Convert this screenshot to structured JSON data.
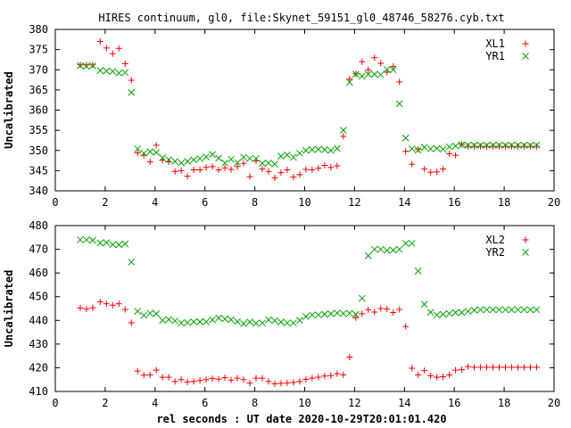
{
  "title": "HIRES continuum, gl0, file:Skynet_59151_gl0_48746_58276.cyb.txt",
  "xlabel": "rel seconds : UT date 2020-10-29T20:01:01.420",
  "colors": {
    "series1": "#ff0000",
    "series2": "#00a000",
    "axis": "#000000",
    "background": "#ffffff"
  },
  "chart_data": [
    {
      "type": "scatter",
      "ylabel": "Uncalibrated",
      "xlim": [
        0,
        20
      ],
      "ylim": [
        340,
        380
      ],
      "x_ticks": [
        "0",
        "2",
        "4",
        "6",
        "8",
        "10",
        "12",
        "14",
        "16",
        "18",
        "20"
      ],
      "y_ticks": [
        "340",
        "345",
        "350",
        "355",
        "360",
        "365",
        "370",
        "375",
        "380"
      ],
      "legend_position": "top-right",
      "series": [
        {
          "name": "XL1",
          "marker": "+",
          "x": [
            1.0,
            1.25,
            1.5,
            1.8,
            2.05,
            2.3,
            2.55,
            2.8,
            3.05,
            3.3,
            3.55,
            3.8,
            4.05,
            4.3,
            4.55,
            4.8,
            5.05,
            5.3,
            5.55,
            5.8,
            6.05,
            6.3,
            6.55,
            6.8,
            7.05,
            7.3,
            7.55,
            7.8,
            8.05,
            8.3,
            8.55,
            8.8,
            9.05,
            9.3,
            9.55,
            9.8,
            10.05,
            10.3,
            10.55,
            10.8,
            11.05,
            11.3,
            11.55,
            11.8,
            12.05,
            12.3,
            12.55,
            12.8,
            13.05,
            13.3,
            13.55,
            13.8,
            14.05,
            14.3,
            14.55,
            14.8,
            15.05,
            15.3,
            15.55,
            15.8,
            16.05,
            16.3,
            16.55,
            16.8,
            17.05,
            17.3,
            17.55,
            17.8,
            18.05,
            18.3,
            18.55,
            18.8,
            19.05,
            19.3
          ],
          "y": [
            371.2,
            371.2,
            371.2,
            377.0,
            375.4,
            374.0,
            375.3,
            371.5,
            367.4,
            349.4,
            348.8,
            347.2,
            351.3,
            347.6,
            347.2,
            344.8,
            345.0,
            343.6,
            345.2,
            345.2,
            345.8,
            346.0,
            345.2,
            345.7,
            345.3,
            346.0,
            346.8,
            343.5,
            347.4,
            345.4,
            344.8,
            343.2,
            344.5,
            345.2,
            343.4,
            344.0,
            345.3,
            345.2,
            345.6,
            346.3,
            345.8,
            346.2,
            353.5,
            367.7,
            369.0,
            372.0,
            370.0,
            373.0,
            371.6,
            369.4,
            370.8,
            367.0,
            349.8,
            346.6,
            350.3,
            345.4,
            344.6,
            344.7,
            345.4,
            349.2,
            348.8,
            351.5,
            351.0,
            351.0,
            351.0,
            351.0,
            351.0,
            351.0,
            351.0,
            351.0,
            351.0,
            351.0,
            351.0,
            351.0
          ]
        },
        {
          "name": "YR1",
          "marker": "x",
          "x": [
            1.0,
            1.25,
            1.5,
            1.8,
            2.05,
            2.3,
            2.55,
            2.8,
            3.05,
            3.3,
            3.55,
            3.8,
            4.05,
            4.3,
            4.55,
            4.8,
            5.05,
            5.3,
            5.55,
            5.8,
            6.05,
            6.3,
            6.55,
            6.8,
            7.05,
            7.3,
            7.55,
            7.8,
            8.05,
            8.3,
            8.55,
            8.8,
            9.05,
            9.3,
            9.55,
            9.8,
            10.05,
            10.3,
            10.55,
            10.8,
            11.05,
            11.3,
            11.55,
            11.8,
            12.05,
            12.3,
            12.55,
            12.8,
            13.05,
            13.3,
            13.55,
            13.8,
            14.05,
            14.3,
            14.55,
            14.8,
            15.05,
            15.3,
            15.55,
            15.8,
            16.05,
            16.3,
            16.55,
            16.8,
            17.05,
            17.3,
            17.55,
            17.8,
            18.05,
            18.3,
            18.55,
            18.8,
            19.05,
            19.3
          ],
          "y": [
            371.0,
            370.9,
            371.0,
            369.8,
            369.7,
            369.6,
            369.2,
            369.3,
            364.4,
            350.4,
            349.3,
            349.7,
            349.5,
            348.2,
            347.7,
            347.3,
            346.9,
            347.3,
            347.7,
            348.0,
            348.4,
            349.0,
            348.1,
            346.9,
            347.8,
            347.0,
            348.3,
            348.0,
            348.0,
            346.8,
            346.9,
            346.6,
            348.6,
            348.9,
            348.3,
            349.3,
            350.0,
            350.2,
            350.3,
            350.2,
            350.0,
            350.5,
            355.0,
            366.9,
            368.9,
            368.4,
            368.9,
            368.9,
            368.8,
            370.1,
            370.0,
            361.6,
            353.1,
            350.4,
            350.1,
            350.8,
            350.4,
            350.5,
            350.3,
            350.9,
            351.1,
            351.4,
            351.3,
            351.3,
            351.3,
            351.3,
            351.3,
            351.3,
            351.3,
            351.3,
            351.3,
            351.3,
            351.3,
            351.3
          ]
        }
      ]
    },
    {
      "type": "scatter",
      "ylabel": "Uncalibrated",
      "xlim": [
        0,
        20
      ],
      "ylim": [
        410,
        480
      ],
      "x_ticks": [
        "0",
        "2",
        "4",
        "6",
        "8",
        "10",
        "12",
        "14",
        "16",
        "18",
        "20"
      ],
      "y_ticks": [
        "410",
        "420",
        "430",
        "440",
        "450",
        "460",
        "470",
        "480"
      ],
      "legend_position": "top-right",
      "series": [
        {
          "name": "XL2",
          "marker": "+",
          "x": [
            1.0,
            1.25,
            1.5,
            1.8,
            2.05,
            2.3,
            2.55,
            2.8,
            3.05,
            3.3,
            3.55,
            3.8,
            4.05,
            4.3,
            4.55,
            4.8,
            5.05,
            5.3,
            5.55,
            5.8,
            6.05,
            6.3,
            6.55,
            6.8,
            7.05,
            7.3,
            7.55,
            7.8,
            8.05,
            8.3,
            8.55,
            8.8,
            9.05,
            9.3,
            9.55,
            9.8,
            10.05,
            10.3,
            10.55,
            10.8,
            11.05,
            11.3,
            11.55,
            11.8,
            12.05,
            12.3,
            12.55,
            12.8,
            13.05,
            13.3,
            13.55,
            13.8,
            14.05,
            14.3,
            14.55,
            14.8,
            15.05,
            15.3,
            15.55,
            15.8,
            16.05,
            16.3,
            16.55,
            16.8,
            17.05,
            17.3,
            17.55,
            17.8,
            18.05,
            18.3,
            18.55,
            18.8,
            19.05,
            19.3
          ],
          "y": [
            445.2,
            444.8,
            445.3,
            447.8,
            447.0,
            446.4,
            447.0,
            444.6,
            439.0,
            418.6,
            416.9,
            417.0,
            419.0,
            416.0,
            416.0,
            414.2,
            415.0,
            414.0,
            414.2,
            414.6,
            415.0,
            415.5,
            415.2,
            415.8,
            414.8,
            415.6,
            415.0,
            413.5,
            415.6,
            415.6,
            414.2,
            413.2,
            413.4,
            413.6,
            413.8,
            414.2,
            415.1,
            415.6,
            416.0,
            416.5,
            416.7,
            417.5,
            417.0,
            424.5,
            441.1,
            442.8,
            444.5,
            443.5,
            445.0,
            444.8,
            443.3,
            444.6,
            437.4,
            419.8,
            417.0,
            418.8,
            416.6,
            416.0,
            416.2,
            417.0,
            419.0,
            419.2,
            420.5,
            420.2,
            420.2,
            420.2,
            420.2,
            420.2,
            420.2,
            420.2,
            420.2,
            420.2,
            420.2,
            420.2
          ]
        },
        {
          "name": "YR2",
          "marker": "x",
          "x": [
            1.0,
            1.25,
            1.5,
            1.8,
            2.05,
            2.3,
            2.55,
            2.8,
            3.05,
            3.3,
            3.55,
            3.8,
            4.05,
            4.3,
            4.55,
            4.8,
            5.05,
            5.3,
            5.55,
            5.8,
            6.05,
            6.3,
            6.55,
            6.8,
            7.05,
            7.3,
            7.55,
            7.8,
            8.05,
            8.3,
            8.55,
            8.8,
            9.05,
            9.3,
            9.55,
            9.8,
            10.05,
            10.3,
            10.55,
            10.8,
            11.05,
            11.3,
            11.55,
            11.8,
            12.05,
            12.3,
            12.55,
            12.8,
            13.05,
            13.3,
            13.55,
            13.8,
            14.05,
            14.3,
            14.55,
            14.8,
            15.05,
            15.3,
            15.55,
            15.8,
            16.05,
            16.3,
            16.55,
            16.8,
            17.05,
            17.3,
            17.55,
            17.8,
            18.05,
            18.3,
            18.55,
            18.8,
            19.05,
            19.3
          ],
          "y": [
            474.0,
            474.0,
            473.8,
            472.7,
            472.8,
            472.0,
            471.9,
            472.3,
            464.6,
            443.8,
            442.1,
            443.0,
            442.8,
            440.0,
            440.4,
            439.8,
            438.9,
            439.0,
            439.4,
            439.4,
            439.4,
            440.2,
            441.0,
            440.6,
            440.3,
            439.5,
            438.6,
            439.3,
            438.8,
            438.9,
            440.2,
            439.9,
            439.3,
            438.9,
            438.9,
            440.0,
            441.6,
            442.3,
            442.3,
            442.6,
            442.8,
            443.1,
            442.9,
            443.0,
            442.5,
            449.3,
            467.3,
            470.0,
            470.0,
            469.5,
            469.6,
            470.0,
            472.5,
            472.5,
            460.8,
            446.8,
            443.4,
            442.3,
            442.6,
            442.9,
            443.3,
            443.3,
            443.8,
            444.3,
            444.5,
            444.5,
            444.5,
            444.5,
            444.5,
            444.5,
            444.5,
            444.5,
            444.5,
            444.5
          ]
        }
      ]
    }
  ]
}
